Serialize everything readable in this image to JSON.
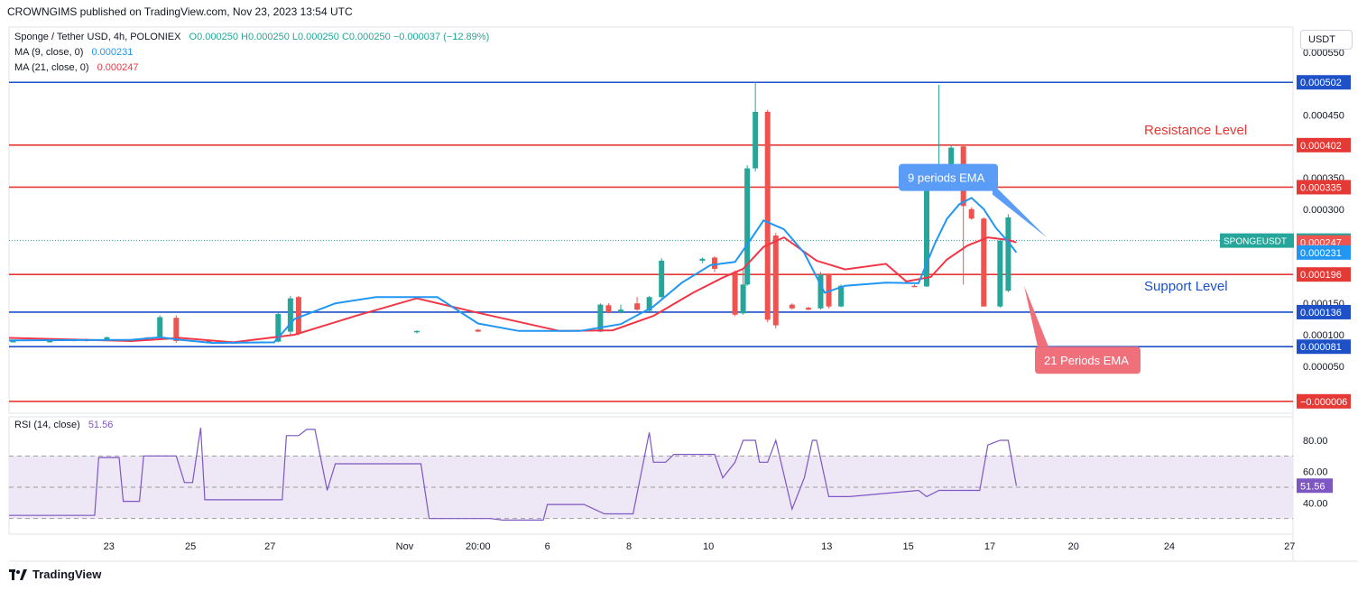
{
  "header": {
    "text": "CROWNGIMS published on TradingView.com, Nov 23, 2023 13:54 UTC"
  },
  "legend": {
    "symbol": "Sponge / Tether USD, 4h, POLONIEX",
    "ohlc": "O0.000250  H0.000250  L0.000250  C0.000250  −0.000037 (−12.89%)",
    "ma9_label": "MA (9, close, 0)",
    "ma9_value": "0.000231",
    "ma21_label": "MA (21, close, 0)",
    "ma21_value": "0.000247",
    "rsi_label": "RSI (14, close)",
    "rsi_value": "51.56"
  },
  "unit": "USDT",
  "footer": {
    "brand": "TradingView"
  },
  "colors": {
    "up": "#26a69a",
    "down": "#ef5350",
    "ema9": "#2196f3",
    "ema21": "#f23645",
    "hline_blue": "#1e50c8",
    "hline_red": "#e53935",
    "rsi": "#7e57c2",
    "rsi_band": "#ede7f6"
  },
  "chart_data": {
    "type": "candlestick",
    "symbol": "SPONGEUSDT",
    "price_axis": {
      "range": [
        -2.5e-05,
        0.00059
      ],
      "tick_labels": [
        "0.000550",
        "0.000450",
        "0.000350",
        "0.000300",
        "0.000150",
        "0.000100",
        "0.000050"
      ]
    },
    "time_axis": {
      "tick_labels": [
        "23",
        "25",
        "27",
        "Nov",
        "20:00",
        "6",
        "8",
        "10",
        "13",
        "15",
        "17",
        "20",
        "24",
        "27"
      ]
    },
    "horizontal_levels": [
      {
        "price": 0.000502,
        "label": "0.000502",
        "color": "blue"
      },
      {
        "price": 0.000402,
        "label": "0.000402",
        "color": "red"
      },
      {
        "price": 0.000335,
        "label": "0.000335",
        "color": "red"
      },
      {
        "price": 0.000196,
        "label": "0.000196",
        "color": "red"
      },
      {
        "price": 0.000136,
        "label": "0.000136",
        "color": "blue"
      },
      {
        "price": 8.1e-05,
        "label": "0.000081",
        "color": "blue"
      },
      {
        "price": -6e-06,
        "label": "−0.000006",
        "color": "red"
      }
    ],
    "price_tags": [
      {
        "price": 0.00025,
        "label": "0.000250",
        "color": "teal",
        "name": "SPONGEUSDT"
      },
      {
        "price": 0.000247,
        "label": "0.000247",
        "color": "red"
      },
      {
        "price": 0.000231,
        "label": "0.000231",
        "color": "blue"
      }
    ],
    "annotations": {
      "resistance": "Resistance Level",
      "support": "Support Level",
      "ema9": "9 periods EMA",
      "ema21": "21 Periods EMA"
    },
    "candles": [
      {
        "x": 0.1,
        "o": 9e-05,
        "h": 9.1e-05,
        "l": 8.9e-05,
        "c": 9e-05
      },
      {
        "x": 1.0,
        "o": 9e-05,
        "h": 9.1e-05,
        "l": 8.9e-05,
        "c": 9e-05
      },
      {
        "x": 1.6,
        "o": 9.1e-05,
        "h": 9.4e-05,
        "l": 9e-05,
        "c": 9.2e-05
      },
      {
        "x": 1.9,
        "o": 9.3e-05,
        "h": 9.4e-05,
        "l": 8.9e-05,
        "c": 9e-05
      },
      {
        "x": 2.4,
        "o": 9.1e-05,
        "h": 9.7e-05,
        "l": 9e-05,
        "c": 9.6e-05
      },
      {
        "x": 3.4,
        "o": 9.6e-05,
        "h": 9.6e-05,
        "l": 9.4e-05,
        "c": 9.5e-05
      },
      {
        "x": 3.7,
        "o": 9.6e-05,
        "h": 0.000131,
        "l": 9.5e-05,
        "c": 0.000128
      },
      {
        "x": 4.1,
        "o": 0.000127,
        "h": 0.000131,
        "l": 8.7e-05,
        "c": 9e-05
      },
      {
        "x": 4.9,
        "o": 9e-05,
        "h": 9.1e-05,
        "l": 8.7e-05,
        "c": 8.9e-05
      },
      {
        "x": 5.5,
        "o": 8.8e-05,
        "h": 8.9e-05,
        "l": 8.6e-05,
        "c": 8.7e-05
      },
      {
        "x": 6.6,
        "o": 8.9e-05,
        "h": 0.000135,
        "l": 8.8e-05,
        "c": 0.000133
      },
      {
        "x": 6.9,
        "o": 0.000105,
        "h": 0.000162,
        "l": 0.0001,
        "c": 0.000158
      },
      {
        "x": 7.1,
        "o": 0.00016,
        "h": 0.000162,
        "l": 9.9e-05,
        "c": 0.000102
      },
      {
        "x": 10.0,
        "o": 0.000104,
        "h": 0.000107,
        "l": 0.000102,
        "c": 0.000106
      },
      {
        "x": 11.5,
        "o": 0.000108,
        "h": 0.000109,
        "l": 0.000104,
        "c": 0.000105
      },
      {
        "x": 14.5,
        "o": 0.000105,
        "h": 0.00015,
        "l": 0.000104,
        "c": 0.000148
      },
      {
        "x": 14.7,
        "o": 0.000147,
        "h": 0.00015,
        "l": 0.000134,
        "c": 0.000136
      },
      {
        "x": 15.0,
        "o": 0.000136,
        "h": 0.000148,
        "l": 0.000134,
        "c": 0.00014
      },
      {
        "x": 15.4,
        "o": 0.00015,
        "h": 0.00016,
        "l": 0.000138,
        "c": 0.00014
      },
      {
        "x": 15.7,
        "o": 0.000138,
        "h": 0.000162,
        "l": 0.000137,
        "c": 0.00016
      },
      {
        "x": 16.0,
        "o": 0.00016,
        "h": 0.000222,
        "l": 0.000158,
        "c": 0.000218
      },
      {
        "x": 17.0,
        "o": 0.000218,
        "h": 0.000223,
        "l": 0.000214,
        "c": 0.000221
      },
      {
        "x": 17.3,
        "o": 0.000223,
        "h": 0.000225,
        "l": 0.0002,
        "c": 0.000205
      },
      {
        "x": 17.8,
        "o": 0.0002,
        "h": 0.000202,
        "l": 0.00013,
        "c": 0.000132
      },
      {
        "x": 18.0,
        "o": 0.000134,
        "h": 0.000205,
        "l": 0.000132,
        "c": 0.00018
      },
      {
        "x": 18.1,
        "o": 0.00018,
        "h": 0.00037,
        "l": 0.000178,
        "c": 0.000365
      },
      {
        "x": 18.3,
        "o": 0.000365,
        "h": 0.000502,
        "l": 0.00036,
        "c": 0.000455
      },
      {
        "x": 18.6,
        "o": 0.000455,
        "h": 0.000458,
        "l": 0.00012,
        "c": 0.000124
      },
      {
        "x": 18.8,
        "o": 0.000258,
        "h": 0.000262,
        "l": 0.00011,
        "c": 0.000115
      },
      {
        "x": 19.2,
        "o": 0.000148,
        "h": 0.00015,
        "l": 0.00014,
        "c": 0.000142
      },
      {
        "x": 19.6,
        "o": 0.000143,
        "h": 0.000145,
        "l": 0.000139,
        "c": 0.00014
      },
      {
        "x": 19.9,
        "o": 0.000142,
        "h": 0.0002,
        "l": 0.00014,
        "c": 0.000196
      },
      {
        "x": 20.1,
        "o": 0.000196,
        "h": 0.000198,
        "l": 0.000142,
        "c": 0.000145
      },
      {
        "x": 20.4,
        "o": 0.000145,
        "h": 0.00018,
        "l": 0.000144,
        "c": 0.000178
      },
      {
        "x": 22.2,
        "o": 0.000178,
        "h": 0.00018,
        "l": 0.000176,
        "c": 0.000177
      },
      {
        "x": 22.5,
        "o": 0.000177,
        "h": 0.000335,
        "l": 0.000176,
        "c": 0.000333
      },
      {
        "x": 22.8,
        "o": 0.000333,
        "h": 0.000498,
        "l": 0.00033,
        "c": 0.000335
      },
      {
        "x": 23.1,
        "o": 0.000335,
        "h": 0.000402,
        "l": 0.000333,
        "c": 0.000398
      },
      {
        "x": 23.4,
        "o": 0.0004,
        "h": 0.000402,
        "l": 0.00018,
        "c": 0.000305
      },
      {
        "x": 23.6,
        "o": 0.0003,
        "h": 0.000303,
        "l": 0.000283,
        "c": 0.000285
      },
      {
        "x": 23.9,
        "o": 0.000285,
        "h": 0.000287,
        "l": 0.000145,
        "c": 0.000145
      },
      {
        "x": 24.3,
        "o": 0.000145,
        "h": 0.000252,
        "l": 0.000143,
        "c": 0.00025
      },
      {
        "x": 24.5,
        "o": 0.00017,
        "h": 0.000292,
        "l": 0.000168,
        "c": 0.000287
      }
    ],
    "ema9": {
      "x": [
        0.0,
        3.0,
        3.7,
        4.2,
        5.0,
        6.5,
        7.0,
        8.0,
        9.0,
        10.5,
        11.5,
        12.5,
        14.0,
        15.0,
        15.8,
        16.5,
        17.2,
        17.8,
        18.2,
        18.5,
        19.0,
        19.5,
        20.0,
        20.5,
        21.5,
        22.3,
        22.7,
        23.0,
        23.3,
        23.6,
        23.9,
        24.2,
        24.5,
        24.7
      ],
      "values": [
        9.1e-05,
        9.2e-05,
        9.6e-05,
        9.2e-05,
        8.7e-05,
        8.8e-05,
        0.000125,
        0.00015,
        0.00016,
        0.00016,
        0.000118,
        0.000106,
        0.000106,
        0.000117,
        0.000145,
        0.000183,
        0.000211,
        0.000216,
        0.000253,
        0.000282,
        0.000268,
        0.00023,
        0.000167,
        0.000178,
        0.000183,
        0.000182,
        0.000245,
        0.000285,
        0.000308,
        0.000318,
        0.0003,
        0.00027,
        0.000248,
        0.000231
      ]
    },
    "ema21": {
      "x": [
        0.0,
        3.0,
        4.2,
        5.5,
        7.0,
        8.5,
        10.0,
        11.5,
        13.5,
        14.8,
        15.8,
        16.8,
        17.5,
        18.0,
        18.5,
        19.0,
        19.8,
        20.5,
        21.5,
        22.0,
        22.6,
        23.0,
        23.5,
        24.0,
        24.5,
        24.7
      ],
      "values": [
        9.5e-05,
        9e-05,
        9.5e-05,
        8.8e-05,
        0.0001,
        0.00013,
        0.000158,
        0.000135,
        0.000106,
        0.000107,
        0.00013,
        0.000168,
        0.000191,
        0.000205,
        0.00024,
        0.000255,
        0.000218,
        0.000204,
        0.000213,
        0.000185,
        0.000192,
        0.00022,
        0.000242,
        0.000255,
        0.000251,
        0.000247
      ]
    },
    "rsi": {
      "ylim": [
        20,
        95
      ],
      "tick_labels": [
        "80.00",
        "60.00",
        "40.00"
      ],
      "upper_band": 70,
      "mid": 50,
      "lower_band": 30,
      "x": [
        0.0,
        2.1,
        2.2,
        2.7,
        2.8,
        3.2,
        3.3,
        4.1,
        4.3,
        4.5,
        4.7,
        4.8,
        6.7,
        6.8,
        7.1,
        7.3,
        7.5,
        7.8,
        8.0,
        10.1,
        10.3,
        11.8,
        12.1,
        13.1,
        13.2,
        14.1,
        14.6,
        14.8,
        15.2,
        15.3,
        15.7,
        15.8,
        16.1,
        16.3,
        17.3,
        17.5,
        17.8,
        18.0,
        18.1,
        18.3,
        18.4,
        18.6,
        18.8,
        19.2,
        19.5,
        19.7,
        19.8,
        20.1,
        20.4,
        20.6,
        22.3,
        22.5,
        22.8,
        23.0,
        23.3,
        23.5,
        23.8,
        24.0,
        24.3,
        24.5,
        24.7
      ],
      "values": [
        32,
        32,
        69,
        69,
        41,
        41,
        70,
        70,
        53,
        53,
        88,
        42,
        42,
        83,
        83,
        87,
        87,
        48,
        65,
        65,
        30,
        30,
        29,
        29,
        39,
        39,
        33,
        33,
        33,
        33,
        85,
        66,
        66,
        71,
        71,
        56,
        66,
        80,
        80,
        80,
        66,
        66,
        80,
        36,
        56,
        80,
        80,
        44,
        44,
        44,
        48,
        44,
        48,
        48,
        48,
        48,
        48,
        77,
        80,
        80,
        51
      ]
    }
  }
}
